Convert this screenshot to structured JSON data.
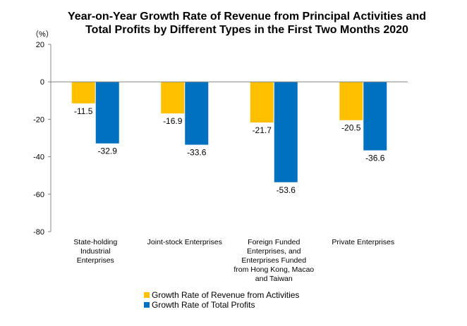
{
  "chart_data": {
    "type": "bar",
    "title_line1": "Year-on-Year Growth Rate of Revenue from Principal Activities  and",
    "title_line2": "Total Profits  by Different Types in the First Two Months 2020",
    "unit": "（%）",
    "ylim": [
      -80,
      20
    ],
    "yticks": [
      20,
      0,
      -20,
      -40,
      -60,
      -80
    ],
    "categories": [
      [
        "State-holding",
        "Industrial",
        "Enterprises"
      ],
      [
        "Joint-stock Enterprises"
      ],
      [
        "Foreign Funded",
        "Enterprises, and",
        "Enterprises Funded",
        "from Hong Kong, Macao",
        "and Taiwan"
      ],
      [
        "Private Enterprises"
      ]
    ],
    "series": [
      {
        "name": "Growth Rate of Revenue from Activities",
        "color": "#FFC000",
        "values": [
          -11.5,
          -16.9,
          -21.7,
          -20.5
        ]
      },
      {
        "name": "Growth Rate of Total Profits",
        "color": "#0070C0",
        "values": [
          -32.9,
          -33.6,
          -53.6,
          -36.6
        ]
      }
    ],
    "grid": false,
    "legend_position": "bottom"
  }
}
